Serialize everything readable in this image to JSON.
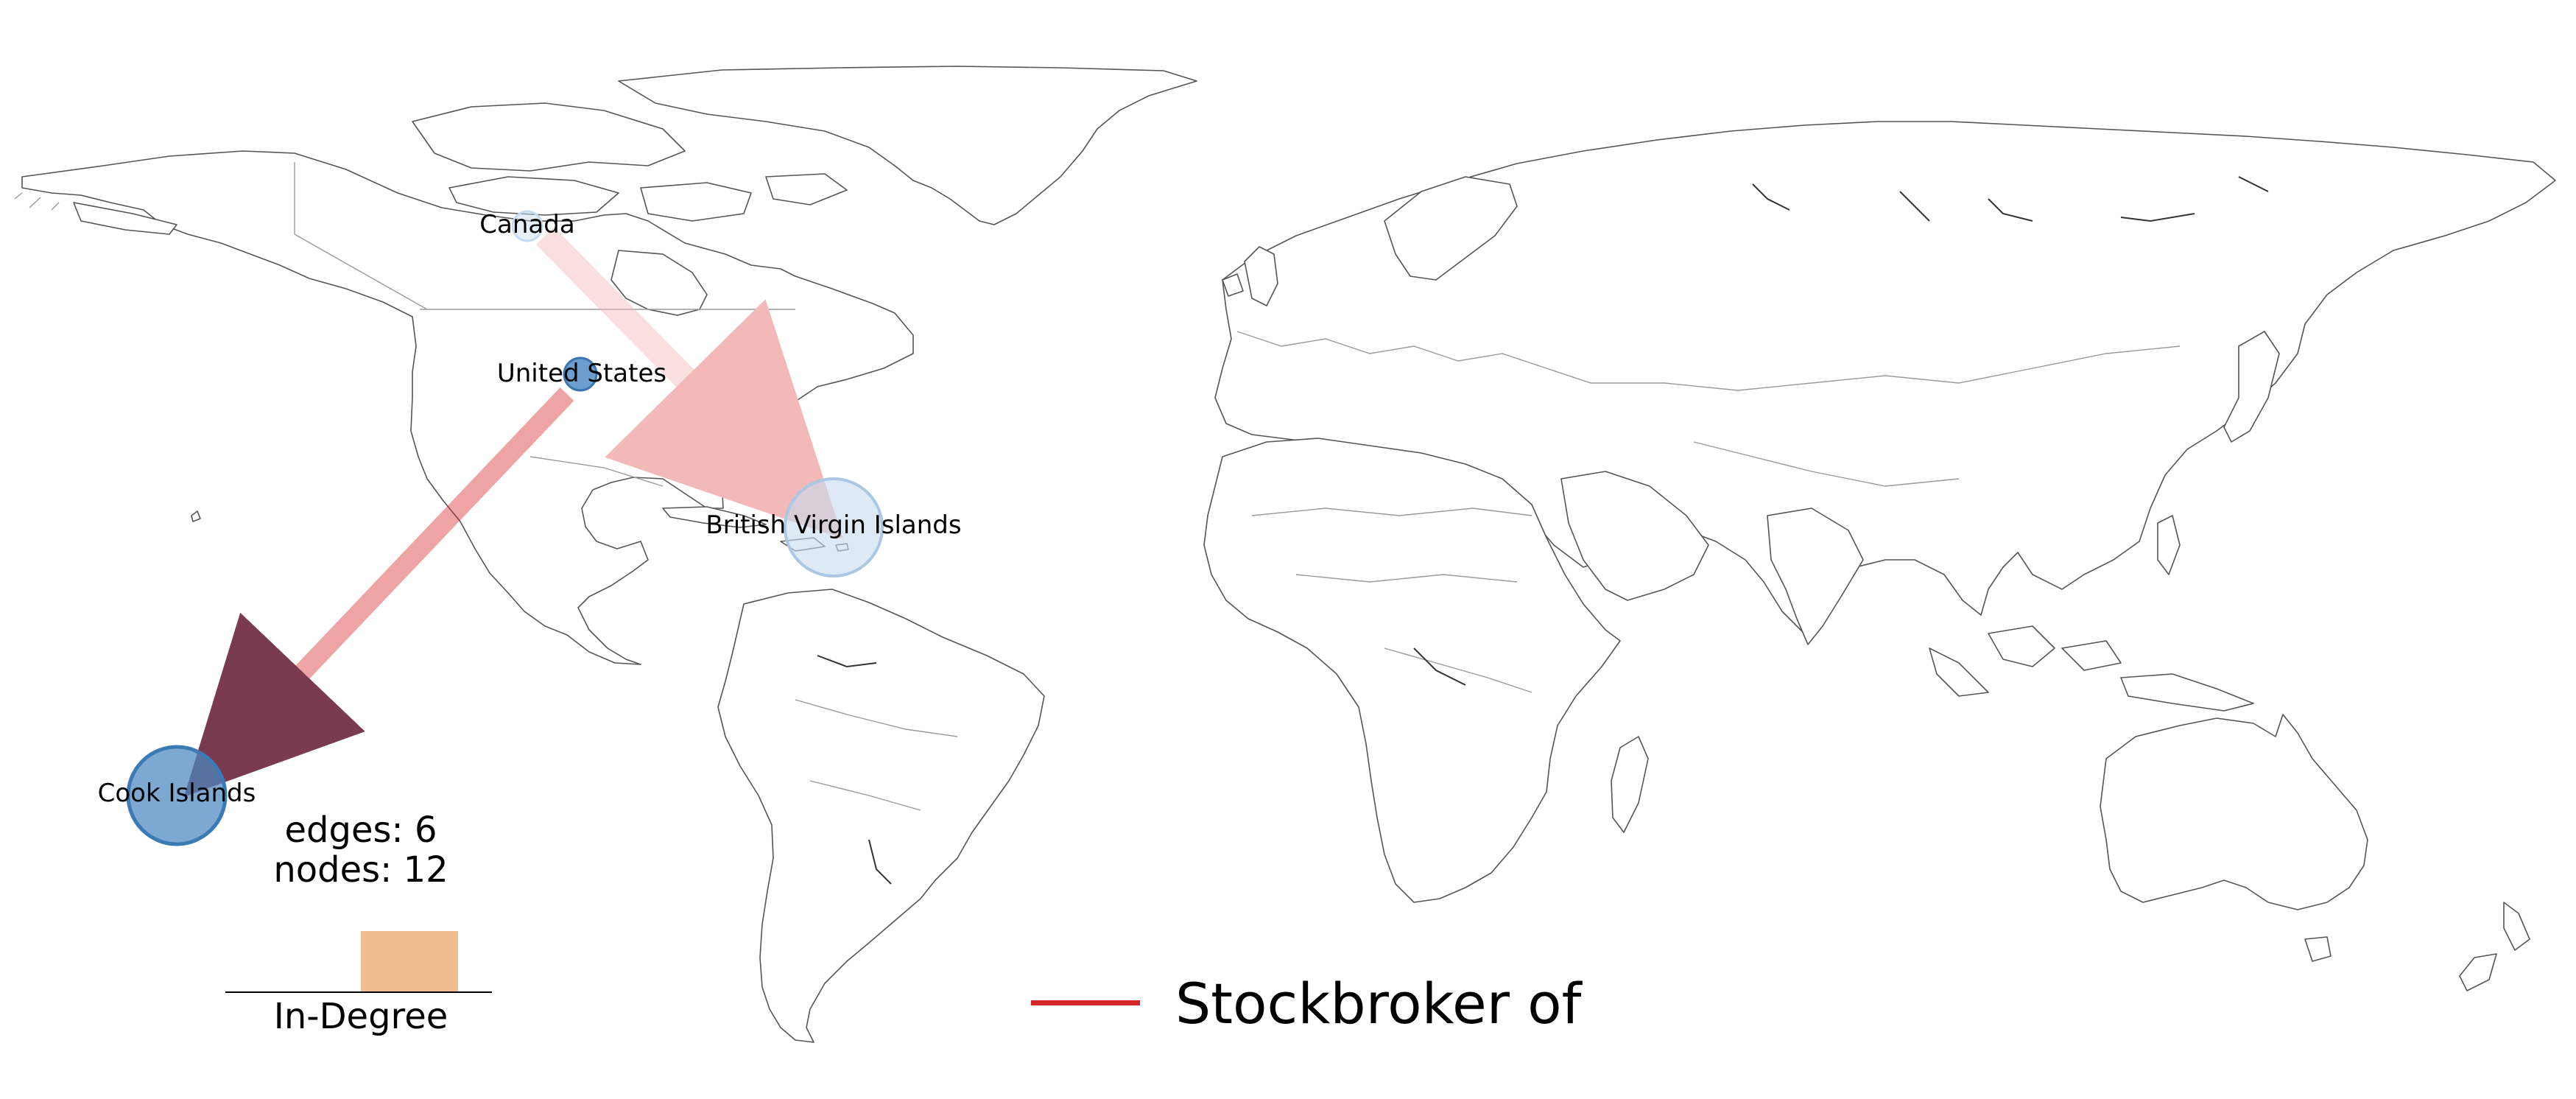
{
  "nodes": [
    {
      "name": "Canada",
      "in_degree": 0
    },
    {
      "name": "United States",
      "in_degree": 0
    },
    {
      "name": "British Virgin Islands",
      "in_degree": 1
    },
    {
      "name": "Cook Islands",
      "in_degree": 1
    }
  ],
  "edges": [
    {
      "from": "Canada",
      "to": "British Virgin Islands",
      "type": "Stockbroker of"
    },
    {
      "from": "United States",
      "to": "Cook Islands",
      "type": "Stockbroker of"
    }
  ],
  "stats": {
    "edges_text": "edges: 6",
    "nodes_text": "nodes: 12"
  },
  "histogram": {
    "label": "In-Degree",
    "bars": [
      1.0
    ]
  },
  "legend": {
    "label": "Stockbroker of",
    "color": "#d62728"
  },
  "colors": {
    "node_fill": "#4a86c0",
    "edge": "#d62728",
    "histogram_bar": "#f0bd90",
    "land_stroke": "#555555"
  }
}
